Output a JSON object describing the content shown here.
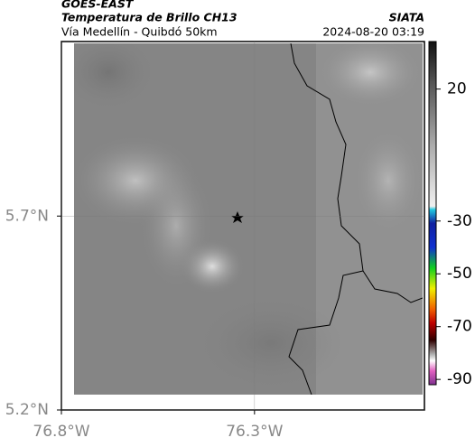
{
  "header": {
    "title": "GOES-EAST",
    "subtitle": "Temperatura de Brillo CH13",
    "source": "SIATA",
    "route": "Vía Medellín - Quibdó 50km",
    "timestamp": "2024-08-20 03:19"
  },
  "map": {
    "xlim": [
      -76.8,
      -75.86
    ],
    "ylim": [
      5.2,
      6.15
    ],
    "xticks": [
      {
        "value": -76.8,
        "label": "76.8°W"
      },
      {
        "value": -76.3,
        "label": "76.3°W"
      }
    ],
    "yticks": [
      {
        "value": 5.2,
        "label": "5.2°N"
      },
      {
        "value": 5.7,
        "label": "5.7°N"
      }
    ]
  },
  "colorbar": {
    "lim": [
      -92,
      38
    ],
    "ticks": [
      20,
      -30,
      -50,
      -70,
      -90
    ]
  }
}
